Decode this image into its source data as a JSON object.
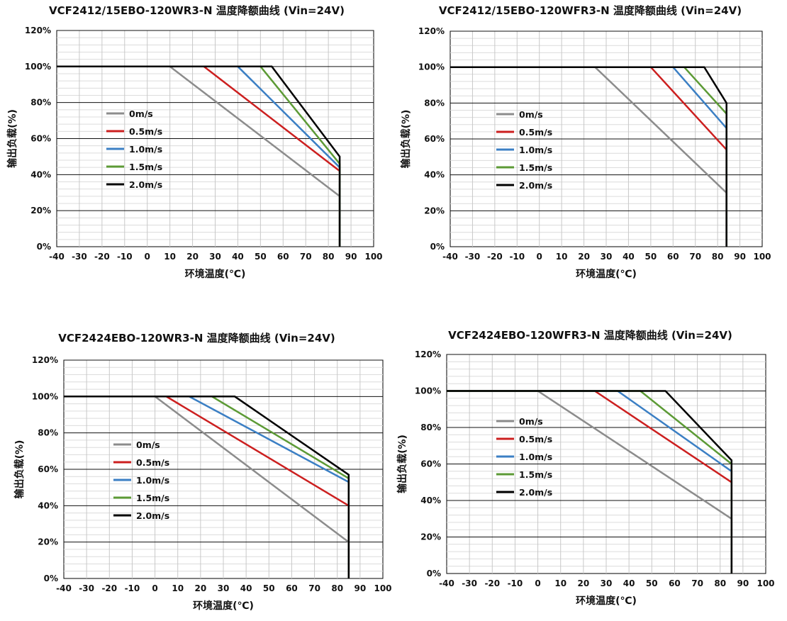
{
  "chart_data": [
    {
      "type": "line",
      "title": "VCF2412/15EBO-120WR3-N 温度降额曲线 (Vin=24V)",
      "xlabel": "环境温度(℃)",
      "ylabel": "输出负载(%)",
      "xlim": [
        -40,
        100
      ],
      "ylim": [
        0,
        120
      ],
      "x_ticks": [
        "-40",
        "-30",
        "-20",
        "-10",
        "0",
        "10",
        "20",
        "30",
        "40",
        "50",
        "60",
        "70",
        "80",
        "90",
        "100"
      ],
      "y_ticks": [
        "0%",
        "20%",
        "40%",
        "60%",
        "80%",
        "100%",
        "120%"
      ],
      "grid": true,
      "legend_position": "center-left",
      "series": [
        {
          "name": "0m/s",
          "color": "#8c8c8c",
          "x": [
            -40,
            10,
            85,
            85
          ],
          "y": [
            100,
            100,
            28,
            0
          ]
        },
        {
          "name": "0.5m/s",
          "color": "#cc1f1f",
          "x": [
            -40,
            25,
            85,
            85
          ],
          "y": [
            100,
            100,
            42,
            0
          ]
        },
        {
          "name": "1.0m/s",
          "color": "#3b7fc4",
          "x": [
            -40,
            40,
            85,
            85
          ],
          "y": [
            100,
            100,
            44,
            0
          ]
        },
        {
          "name": "1.5m/s",
          "color": "#5c9a35",
          "x": [
            -40,
            50,
            85,
            85
          ],
          "y": [
            100,
            100,
            46,
            0
          ]
        },
        {
          "name": "2.0m/s",
          "color": "#000000",
          "x": [
            -40,
            55,
            85,
            85
          ],
          "y": [
            100,
            100,
            50,
            0
          ]
        }
      ]
    },
    {
      "type": "line",
      "title": "VCF2412/15EBO-120WFR3-N 温度降额曲线 (Vin=24V)",
      "xlabel": "环境温度(℃)",
      "ylabel": "输出负载(%)",
      "xlim": [
        -40,
        100
      ],
      "ylim": [
        0,
        120
      ],
      "x_ticks": [
        "-40",
        "-30",
        "-20",
        "-10",
        "0",
        "10",
        "20",
        "30",
        "40",
        "50",
        "60",
        "70",
        "80",
        "90",
        "100"
      ],
      "y_ticks": [
        "0%",
        "20%",
        "40%",
        "60%",
        "80%",
        "100%",
        "120%"
      ],
      "grid": true,
      "legend_position": "center-left",
      "series": [
        {
          "name": "0m/s",
          "color": "#8c8c8c",
          "x": [
            -40,
            25,
            84,
            84
          ],
          "y": [
            100,
            100,
            30,
            0
          ]
        },
        {
          "name": "0.5m/s",
          "color": "#cc1f1f",
          "x": [
            -40,
            50,
            84,
            84
          ],
          "y": [
            100,
            100,
            54,
            0
          ]
        },
        {
          "name": "1.0m/s",
          "color": "#3b7fc4",
          "x": [
            -40,
            60,
            84,
            84
          ],
          "y": [
            100,
            100,
            66,
            0
          ]
        },
        {
          "name": "1.5m/s",
          "color": "#5c9a35",
          "x": [
            -40,
            65,
            84,
            84
          ],
          "y": [
            100,
            100,
            74,
            0
          ]
        },
        {
          "name": "2.0m/s",
          "color": "#000000",
          "x": [
            -40,
            74,
            84,
            84
          ],
          "y": [
            100,
            100,
            80,
            0
          ]
        }
      ]
    },
    {
      "type": "line",
      "title": "VCF2424EBO-120WR3-N 温度降额曲线 (Vin=24V)",
      "xlabel": "环境温度(℃)",
      "ylabel": "输出负载(%)",
      "xlim": [
        -40,
        100
      ],
      "ylim": [
        0,
        120
      ],
      "x_ticks": [
        "-40",
        "-30",
        "-20",
        "-10",
        "0",
        "10",
        "20",
        "30",
        "40",
        "50",
        "60",
        "70",
        "80",
        "90",
        "100"
      ],
      "y_ticks": [
        "0%",
        "20%",
        "40%",
        "60%",
        "80%",
        "100%",
        "120%"
      ],
      "grid": true,
      "legend_position": "center-left",
      "series": [
        {
          "name": "0m/s",
          "color": "#8c8c8c",
          "x": [
            -40,
            0,
            85,
            85
          ],
          "y": [
            100,
            100,
            20,
            0
          ]
        },
        {
          "name": "0.5m/s",
          "color": "#cc1f1f",
          "x": [
            -40,
            5,
            85,
            85
          ],
          "y": [
            100,
            100,
            40,
            0
          ]
        },
        {
          "name": "1.0m/s",
          "color": "#3b7fc4",
          "x": [
            -40,
            15,
            85,
            85
          ],
          "y": [
            100,
            100,
            53,
            0
          ]
        },
        {
          "name": "1.5m/s",
          "color": "#5c9a35",
          "x": [
            -40,
            25,
            85,
            85
          ],
          "y": [
            100,
            100,
            55,
            0
          ]
        },
        {
          "name": "2.0m/s",
          "color": "#000000",
          "x": [
            -40,
            35,
            85,
            85
          ],
          "y": [
            100,
            100,
            57,
            0
          ]
        }
      ]
    },
    {
      "type": "line",
      "title": "VCF2424EBO-120WFR3-N 温度降额曲线 (Vin=24V)",
      "xlabel": "环境温度(℃)",
      "ylabel": "输出负载(%)",
      "xlim": [
        -40,
        100
      ],
      "ylim": [
        0,
        120
      ],
      "x_ticks": [
        "-40",
        "-30",
        "-20",
        "-10",
        "0",
        "10",
        "20",
        "30",
        "40",
        "50",
        "60",
        "70",
        "80",
        "90",
        "100"
      ],
      "y_ticks": [
        "0%",
        "20%",
        "40%",
        "60%",
        "80%",
        "100%",
        "120%"
      ],
      "grid": true,
      "legend_position": "center-left",
      "series": [
        {
          "name": "0m/s",
          "color": "#8c8c8c",
          "x": [
            -40,
            0,
            85,
            85
          ],
          "y": [
            100,
            100,
            30,
            0
          ]
        },
        {
          "name": "0.5m/s",
          "color": "#cc1f1f",
          "x": [
            -40,
            25,
            85,
            85
          ],
          "y": [
            100,
            100,
            50,
            0
          ]
        },
        {
          "name": "1.0m/s",
          "color": "#3b7fc4",
          "x": [
            -40,
            35,
            85,
            85
          ],
          "y": [
            100,
            100,
            56,
            0
          ]
        },
        {
          "name": "1.5m/s",
          "color": "#5c9a35",
          "x": [
            -40,
            45,
            85,
            85
          ],
          "y": [
            100,
            100,
            60,
            0
          ]
        },
        {
          "name": "2.0m/s",
          "color": "#000000",
          "x": [
            -40,
            56,
            85,
            85
          ],
          "y": [
            100,
            100,
            62,
            0
          ]
        }
      ]
    }
  ]
}
